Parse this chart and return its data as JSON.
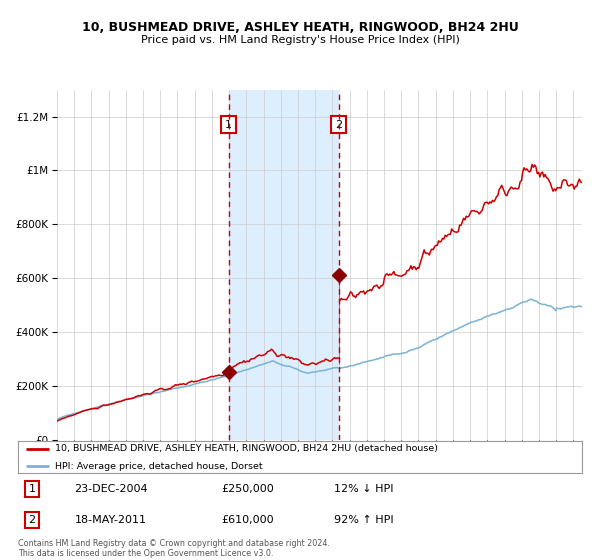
{
  "title1": "10, BUSHMEAD DRIVE, ASHLEY HEATH, RINGWOOD, BH24 2HU",
  "title2": "Price paid vs. HM Land Registry's House Price Index (HPI)",
  "legend_line1": "10, BUSHMEAD DRIVE, ASHLEY HEATH, RINGWOOD, BH24 2HU (detached house)",
  "legend_line2": "HPI: Average price, detached house, Dorset",
  "annotation1_date": "23-DEC-2004",
  "annotation1_price": "£250,000",
  "annotation1_hpi": "12% ↓ HPI",
  "annotation2_date": "18-MAY-2011",
  "annotation2_price": "£610,000",
  "annotation2_hpi": "92% ↑ HPI",
  "footer": "Contains HM Land Registry data © Crown copyright and database right 2024.\nThis data is licensed under the Open Government Licence v3.0.",
  "sale1_year": 2004.97,
  "sale1_value": 250000,
  "sale2_year": 2011.38,
  "sale2_value": 610000,
  "hpi_color": "#7ab3d4",
  "price_color": "#cc0000",
  "marker_color": "#8b0000",
  "shade_color": "#ddeeff",
  "vline_color": "#cc0000",
  "bg_color": "#ffffff",
  "grid_color": "#cccccc",
  "ylim": [
    0,
    1300000
  ],
  "xlim_start": 1995,
  "xlim_end": 2025.5
}
